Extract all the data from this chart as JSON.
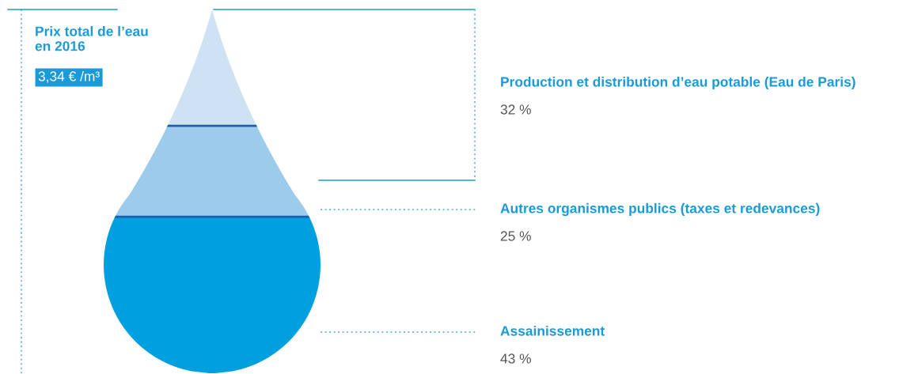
{
  "chart_data": {
    "type": "other",
    "title": "Prix total de l’eau\nen 2016",
    "subtitle": "3,34 € /m³",
    "categories": [
      "Production et distribution d’eau potable (Eau de Paris)",
      "Autres organismes publics (taxes et redevances)",
      "Assainissement"
    ],
    "values": [
      32,
      25,
      43
    ],
    "value_labels": [
      "32 %",
      "25 %",
      "43 %"
    ],
    "colors": [
      "#cfe2f4",
      "#9dcbec",
      "#009fdf"
    ]
  }
}
